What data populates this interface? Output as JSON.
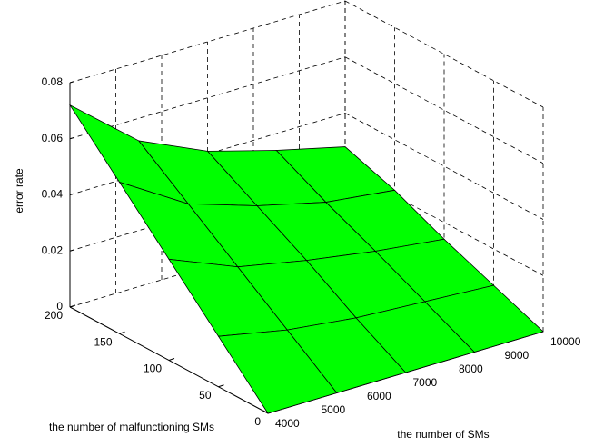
{
  "chart_data": {
    "type": "surface",
    "xlabel": "the number of SMs",
    "ylabel": "the number of malfunctioning SMs",
    "zlabel": "error rate",
    "x": [
      4000,
      5500,
      7000,
      8500,
      10000
    ],
    "y": [
      0,
      50,
      100,
      150,
      200
    ],
    "z": [
      [
        0,
        0,
        0,
        0,
        0
      ],
      [
        0.018,
        0.013,
        0.01,
        0.0085,
        0.007
      ],
      [
        0.036,
        0.026,
        0.021,
        0.017,
        0.014
      ],
      [
        0.054,
        0.039,
        0.031,
        0.025,
        0.022
      ],
      [
        0.072,
        0.052,
        0.041,
        0.034,
        0.028
      ]
    ],
    "xlim": [
      4000,
      10000
    ],
    "xticks": [
      4000,
      5000,
      6000,
      7000,
      8000,
      9000,
      10000
    ],
    "ylim": [
      0,
      200
    ],
    "yticks": [
      0,
      50,
      100,
      150,
      200
    ],
    "zlim": [
      0,
      0.08
    ],
    "zticks": [
      0,
      0.02,
      0.04,
      0.06,
      0.08
    ],
    "color": "#00ff00",
    "grid": true
  }
}
